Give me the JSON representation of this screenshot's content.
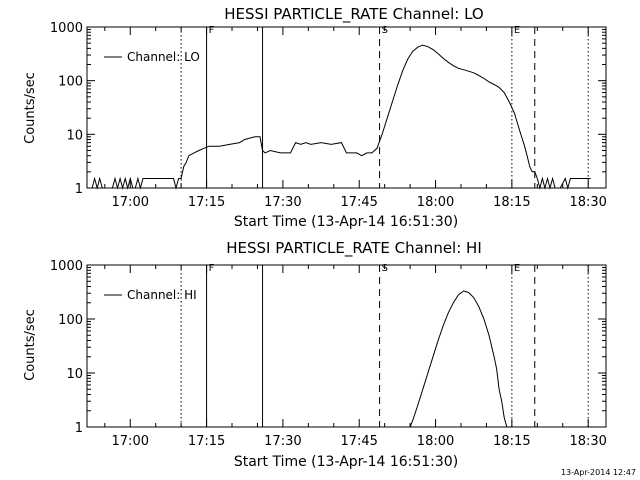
{
  "footer_stamp": "13-Apr-2014 12:47",
  "chart_data": [
    {
      "type": "line",
      "title": "HESSI PARTICLE_RATE Channel: LO",
      "xlabel": "Start Time (13-Apr-14 16:51:30)",
      "ylabel": "Counts/sec",
      "y_scale": "log",
      "ylim": [
        1,
        1000
      ],
      "x_unit": "minutes after 16:51:30",
      "xlim": [
        0,
        102
      ],
      "x_tick_labels": [
        "17:00",
        "17:15",
        "17:30",
        "17:45",
        "18:00",
        "18:15",
        "18:30"
      ],
      "y_tick_labels": [
        "1",
        "10",
        "100",
        "1000"
      ],
      "legend": "Channel: LO",
      "legend_position": "top-left",
      "markers": [
        {
          "label": "F",
          "x": 23.5,
          "style": "solid"
        },
        {
          "label": "S",
          "x": 57.5,
          "style": "dashed"
        },
        {
          "label": "E",
          "x": 83.5,
          "style": "dotted"
        }
      ],
      "extra_lines": [
        {
          "x": 18.5,
          "style": "dotted"
        },
        {
          "x": 34.5,
          "style": "solid"
        },
        {
          "x": 88,
          "style": "dashed"
        },
        {
          "x": 98.5,
          "style": "dotted"
        }
      ],
      "series": [
        {
          "name": "Channel: LO",
          "x": [
            0,
            1,
            1.5,
            2,
            2.5,
            3,
            5,
            5.5,
            6,
            6.5,
            7,
            7.5,
            8,
            8.5,
            9,
            9.5,
            10,
            10.5,
            11,
            13,
            13.5,
            14,
            14.5,
            16,
            16.5,
            17,
            17.5,
            18,
            18.5,
            19,
            19.5,
            20,
            21,
            22,
            23,
            24,
            26,
            28,
            30,
            31,
            32,
            33,
            34,
            34.5,
            35,
            36,
            38,
            40,
            41,
            42,
            43,
            44,
            46,
            48,
            50,
            51,
            52,
            53,
            54,
            55,
            56,
            57,
            58,
            59,
            60,
            61,
            62,
            63,
            64,
            65,
            66,
            67,
            68,
            69,
            70,
            71,
            72,
            73,
            74,
            75,
            76,
            77,
            78,
            79,
            80,
            81,
            82,
            83,
            84,
            85,
            86,
            86.5,
            87,
            87.5,
            88,
            88.5,
            89,
            89.5,
            90,
            90.5,
            91,
            91.5,
            92,
            92.5,
            93,
            94,
            94.5,
            95,
            95.5,
            96,
            97,
            98,
            99
          ],
          "values": [
            1,
            1,
            1.5,
            1,
            1.5,
            1,
            1,
            1.5,
            1,
            1.5,
            1,
            1.5,
            1,
            1.5,
            1,
            1,
            1.5,
            1,
            1.5,
            1.5,
            1.5,
            1.5,
            1.5,
            1.5,
            1.5,
            1.5,
            1,
            1.5,
            1.5,
            2.5,
            3,
            4,
            4.5,
            5,
            5.5,
            6,
            6,
            6.5,
            7,
            8,
            8.5,
            9,
            9,
            5,
            4.5,
            5,
            4.5,
            4.5,
            7,
            6.5,
            7,
            6.5,
            7,
            6.5,
            7,
            4.5,
            4.5,
            4.5,
            4,
            4.5,
            4.5,
            5.5,
            10,
            20,
            40,
            80,
            150,
            250,
            350,
            420,
            460,
            430,
            380,
            320,
            260,
            220,
            190,
            170,
            160,
            150,
            140,
            125,
            110,
            95,
            85,
            75,
            60,
            40,
            25,
            12,
            6,
            4,
            2.5,
            2,
            2,
            1.5,
            1,
            1.5,
            1,
            1.5,
            1,
            1.5,
            1,
            1,
            1,
            1.5,
            1,
            1.5,
            1.5,
            1.5,
            1.5,
            1.5,
            1.5
          ]
        }
      ]
    },
    {
      "type": "line",
      "title": "HESSI PARTICLE_RATE Channel: HI",
      "xlabel": "Start Time (13-Apr-14 16:51:30)",
      "ylabel": "Counts/sec",
      "y_scale": "log",
      "ylim": [
        1,
        1000
      ],
      "x_unit": "minutes after 16:51:30",
      "xlim": [
        0,
        102
      ],
      "x_tick_labels": [
        "17:00",
        "17:15",
        "17:30",
        "17:45",
        "18:00",
        "18:15",
        "18:30"
      ],
      "y_tick_labels": [
        "1",
        "10",
        "100",
        "1000"
      ],
      "legend": "Channel: HI",
      "legend_position": "top-left",
      "markers": [
        {
          "label": "F",
          "x": 23.5,
          "style": "solid"
        },
        {
          "label": "S",
          "x": 57.5,
          "style": "dashed"
        },
        {
          "label": "E",
          "x": 83.5,
          "style": "dotted"
        }
      ],
      "extra_lines": [
        {
          "x": 18.5,
          "style": "dotted"
        },
        {
          "x": 34.5,
          "style": "solid"
        },
        {
          "x": 88,
          "style": "dashed"
        },
        {
          "x": 98.5,
          "style": "dotted"
        }
      ],
      "series": [
        {
          "name": "Channel: HI",
          "x": [
            63.5,
            64,
            65,
            66,
            67,
            68,
            69,
            70,
            71,
            72,
            73,
            74,
            75,
            76,
            77,
            78,
            79,
            80,
            80.5,
            81,
            81.5,
            82,
            82.5
          ],
          "values": [
            1,
            1.3,
            2.5,
            5,
            10,
            20,
            40,
            75,
            130,
            200,
            280,
            330,
            310,
            250,
            170,
            100,
            50,
            20,
            12,
            5,
            3,
            1.5,
            1
          ]
        }
      ]
    }
  ]
}
